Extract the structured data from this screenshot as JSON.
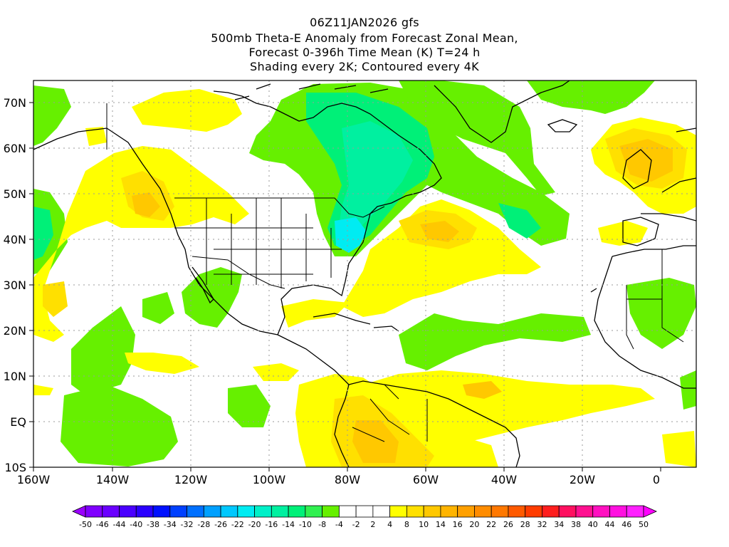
{
  "title": {
    "line1": "06Z11JAN2026 gfs",
    "line2": "500mb Theta-E Anomaly from Forecast Zonal Mean,",
    "line3": "Forecast 0-396h Time Mean (K) T=24 h",
    "line4": "Shading every 2K; Contoured every 4K"
  },
  "axes": {
    "lon_labels": [
      "160W",
      "140W",
      "120W",
      "100W",
      "80W",
      "60W",
      "40W",
      "20W",
      "0"
    ],
    "lat_labels": [
      "70N",
      "60N",
      "50N",
      "40N",
      "30N",
      "20N",
      "10N",
      "EQ",
      "10S"
    ]
  },
  "colorbar": {
    "labels": [
      "-50",
      "-46",
      "-44",
      "-40",
      "-38",
      "-34",
      "-32",
      "-28",
      "-26",
      "-22",
      "-20",
      "-16",
      "-14",
      "-10",
      "-8",
      "-4",
      "-2",
      "2",
      "4",
      "8",
      "10",
      "14",
      "16",
      "20",
      "22",
      "26",
      "28",
      "32",
      "34",
      "38",
      "40",
      "44",
      "46",
      "50"
    ],
    "colors": [
      "#9a00ff",
      "#8000ff",
      "#6a00ff",
      "#4a00ff",
      "#2a00ff",
      "#0010ff",
      "#0040ff",
      "#0070ff",
      "#00a0ff",
      "#00c8ff",
      "#00ecf2",
      "#00f0c8",
      "#00f0a0",
      "#00f078",
      "#30f050",
      "#66f000",
      "#ffffff",
      "#ffffff",
      "#ffffff",
      "#ffff00",
      "#ffe000",
      "#ffc800",
      "#ffb400",
      "#ffa000",
      "#ff8c00",
      "#ff7800",
      "#ff5a00",
      "#ff3c00",
      "#ff1e1e",
      "#ff1060",
      "#ff1090",
      "#ff10c0",
      "#ff10e0",
      "#ff20ff",
      "#ff00ff"
    ]
  }
}
